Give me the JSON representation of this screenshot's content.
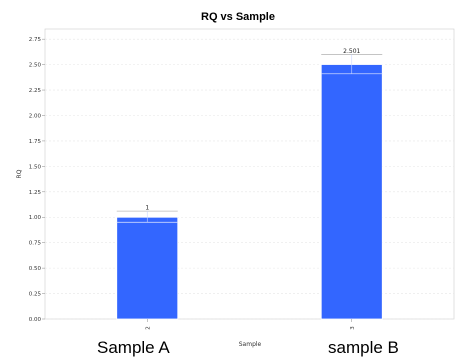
{
  "chart_data": {
    "type": "bar",
    "title": "RQ vs Sample",
    "xlabel": "Sample",
    "ylabel": "RQ",
    "categories": [
      "2",
      "3"
    ],
    "values": [
      1,
      2.501
    ],
    "data_labels": [
      "1",
      "2.501"
    ],
    "error_upper": [
      1.06,
      2.6
    ],
    "error_lower": [
      0.95,
      2.41
    ],
    "ylim": [
      0,
      2.85
    ],
    "yticks": [
      0.0,
      0.25,
      0.5,
      0.75,
      1.0,
      1.25,
      1.5,
      1.75,
      2.0,
      2.25,
      2.5,
      2.75
    ],
    "ytick_labels": [
      "0.00",
      "0.25",
      "0.50",
      "0.75",
      "1.00",
      "1.25",
      "1.50",
      "1.75",
      "2.00",
      "2.25",
      "2.50",
      "2.75"
    ],
    "grid": true,
    "bar_color": "#3366ff"
  },
  "sample_labels": [
    "Sample A",
    "sample B"
  ]
}
